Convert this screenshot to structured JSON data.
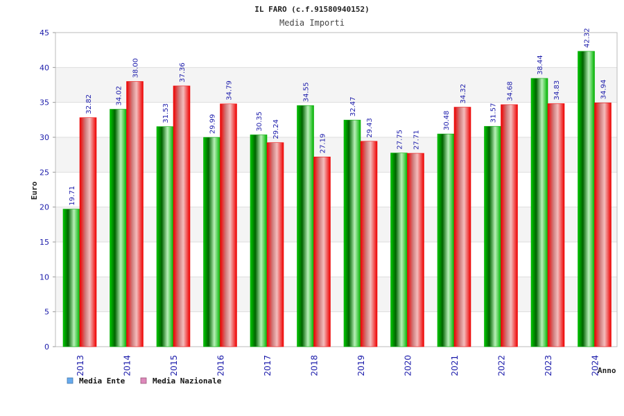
{
  "chart_data": {
    "type": "bar",
    "title": "IL FARO (c.f.91580940152)",
    "subtitle": "Media Importi",
    "xlabel": "Anno",
    "ylabel": "Euro",
    "ylim": [
      0,
      45
    ],
    "yticks": [
      0,
      5,
      10,
      15,
      20,
      25,
      30,
      35,
      40,
      45
    ],
    "grid": true,
    "legend_position": "bottom-left",
    "categories": [
      "2013",
      "2014",
      "2015",
      "2016",
      "2017",
      "2018",
      "2019",
      "2020",
      "2021",
      "2022",
      "2023",
      "2024"
    ],
    "series": [
      {
        "name": "Media Ente",
        "color": "#00aa00",
        "legend_color": "#66aaee",
        "values": [
          19.71,
          34.02,
          31.53,
          29.99,
          30.35,
          34.55,
          32.47,
          27.75,
          30.48,
          31.57,
          38.44,
          42.32
        ],
        "labels": [
          "19.71",
          "34.02",
          "31.53",
          "29.99",
          "30.35",
          "34.55",
          "32.47",
          "27.75",
          "30.48",
          "31.57",
          "38.44",
          "42.32"
        ]
      },
      {
        "name": "Media Nazionale",
        "color": "#ee1111",
        "legend_color": "#dd88bb",
        "values": [
          32.82,
          38.0,
          37.36,
          34.79,
          29.24,
          27.19,
          29.43,
          27.71,
          34.32,
          34.68,
          34.83,
          34.94
        ],
        "labels": [
          "32.82",
          "38.00",
          "37.36",
          "34.79",
          "29.24",
          "27.19",
          "29.43",
          "27.71",
          "34.32",
          "34.68",
          "34.83",
          "34.94"
        ]
      }
    ]
  }
}
